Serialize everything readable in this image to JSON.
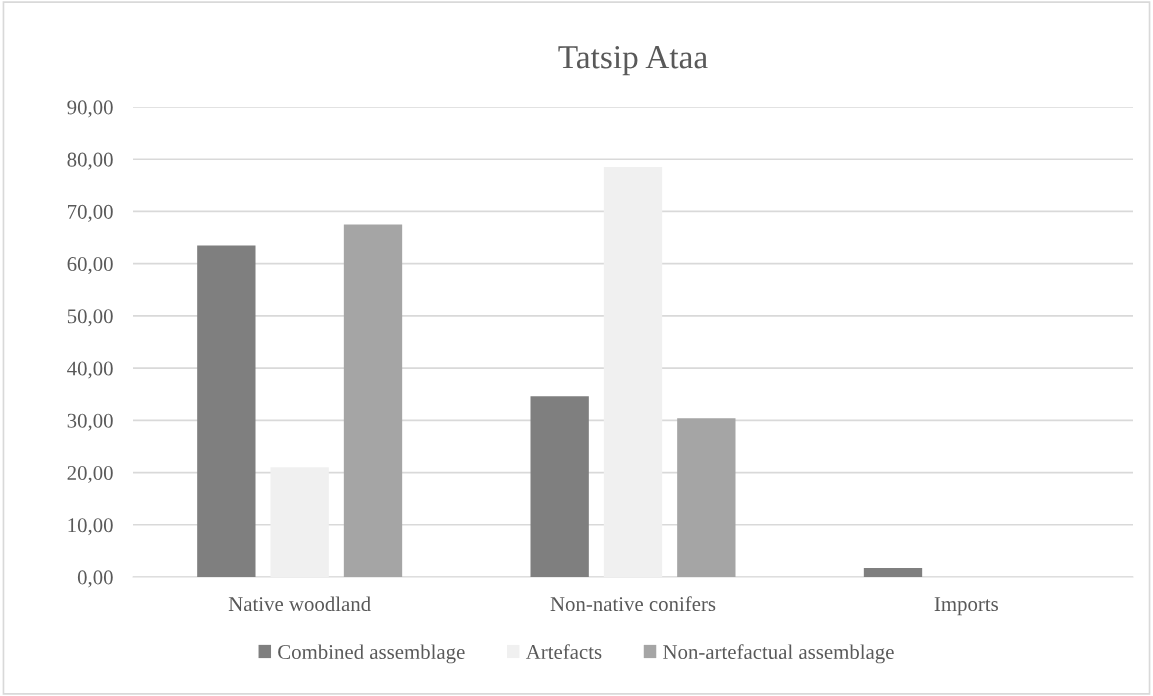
{
  "chart_data": {
    "type": "bar",
    "title": "Tatsip Ataa",
    "categories": [
      "Native woodland",
      "Non-native conifers",
      "Imports"
    ],
    "series": [
      {
        "name": "Combined assemblage",
        "color": "#7f7f7f",
        "values": [
          63.5,
          34.6,
          1.7
        ]
      },
      {
        "name": "Artefacts",
        "color": "#f0f0f0",
        "values": [
          21.0,
          78.5,
          null
        ]
      },
      {
        "name": "Non-artefactual assemblage",
        "color": "#a5a5a5",
        "values": [
          67.5,
          30.4,
          0
        ]
      }
    ],
    "ylim": [
      0,
      90
    ],
    "yticks": [
      {
        "value": 0,
        "label": "0,00"
      },
      {
        "value": 10,
        "label": "10,00"
      },
      {
        "value": 20,
        "label": "20,00"
      },
      {
        "value": 30,
        "label": "30,00"
      },
      {
        "value": 40,
        "label": "40,00"
      },
      {
        "value": 50,
        "label": "50,00"
      },
      {
        "value": 60,
        "label": "60,00"
      },
      {
        "value": 70,
        "label": "70,00"
      },
      {
        "value": 80,
        "label": "80,00"
      },
      {
        "value": 90,
        "label": "90,00"
      }
    ],
    "grid": "y",
    "legend": "bottom"
  }
}
